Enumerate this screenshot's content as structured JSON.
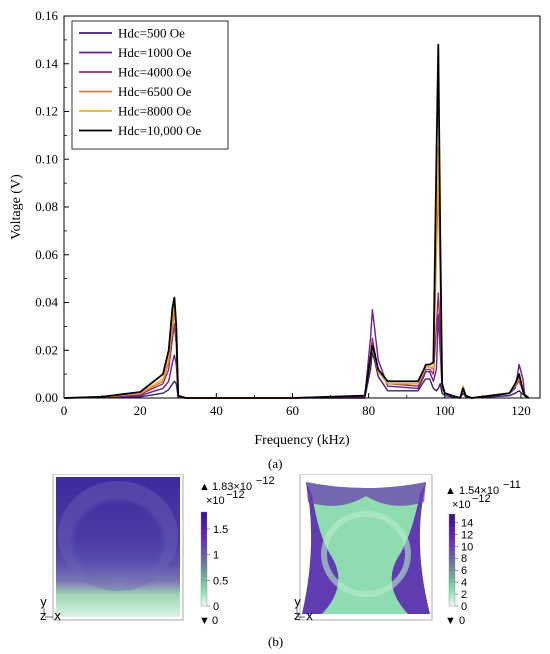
{
  "chart_data": {
    "type": "line",
    "xlabel": "Frequency (kHz)",
    "ylabel": "Voltage (V)",
    "xlim": [
      0,
      125
    ],
    "ylim": [
      0,
      0.16
    ],
    "xticks": [
      "0",
      "20",
      "40",
      "60",
      "80",
      "100",
      "120"
    ],
    "yticks": [
      "0.00",
      "0.02",
      "0.04",
      "0.06",
      "0.08",
      "0.10",
      "0.12",
      "0.14",
      "0.16"
    ],
    "legend_position": "top-left",
    "series": [
      {
        "name": "Hdc=500 Oe",
        "color": "#3b1f73",
        "x": [
          0,
          10,
          20,
          26,
          27.5,
          28.5,
          29,
          29.5,
          30,
          32,
          60,
          79,
          80.5,
          81,
          81.5,
          82.5,
          85,
          93,
          94.5,
          95,
          96,
          97,
          97.8,
          98.3,
          98.8,
          99.3,
          100,
          104,
          104.8,
          105.5,
          107,
          117,
          118.5,
          119.5,
          120.5,
          121,
          122
        ],
        "y": [
          0,
          0.0002,
          0.0005,
          0.002,
          0.0035,
          0.006,
          0.007,
          0.006,
          0.0002,
          0,
          0,
          0,
          0.012,
          0.019,
          0.016,
          0.009,
          0.003,
          0.003,
          0.007,
          0.008,
          0.008,
          0.004,
          0.003,
          0.004,
          0.006,
          0.002,
          0.001,
          0,
          0.002,
          0.0005,
          0,
          0.001,
          0.002,
          0.003,
          0.0015,
          0.0015,
          0.0002
        ]
      },
      {
        "name": "Hdc=1000 Oe",
        "color": "#6c1e8c",
        "x": [
          0,
          10,
          20,
          26,
          27.5,
          28.5,
          29,
          29.5,
          30,
          32,
          60,
          79,
          80.5,
          81,
          81.5,
          82.5,
          85,
          93,
          94.5,
          95,
          96,
          97,
          97.8,
          98.3,
          98.8,
          99.3,
          100,
          104,
          104.8,
          105.5,
          107,
          117,
          118.5,
          119.5,
          120.5,
          121,
          122
        ],
        "y": [
          0,
          0.0003,
          0.001,
          0.004,
          0.007,
          0.015,
          0.018,
          0.014,
          0.0005,
          0,
          0,
          0.0005,
          0.025,
          0.037,
          0.03,
          0.016,
          0.005,
          0.004,
          0.009,
          0.011,
          0.011,
          0.007,
          0.012,
          0.035,
          0.02,
          0.004,
          0.002,
          0,
          0.004,
          0.001,
          0,
          0.002,
          0.004,
          0.014,
          0.008,
          0.001,
          0
        ]
      },
      {
        "name": "Hdc=4000 Oe",
        "color": "#9b2a6a",
        "x": [
          0,
          10,
          20,
          26,
          27.5,
          28.5,
          29,
          29.5,
          30,
          32,
          60,
          79,
          80.5,
          81,
          81.5,
          82.5,
          85,
          93,
          94.5,
          95,
          96,
          97,
          97.8,
          98.3,
          98.8,
          99.3,
          100,
          104,
          104.8,
          105.5,
          107,
          117,
          118.5,
          119.5,
          120.5,
          121,
          122
        ],
        "y": [
          0,
          0.0004,
          0.0015,
          0.006,
          0.012,
          0.025,
          0.031,
          0.022,
          0.0008,
          0,
          0,
          0.0008,
          0.018,
          0.025,
          0.02,
          0.012,
          0.006,
          0.005,
          0.01,
          0.012,
          0.012,
          0.01,
          0.03,
          0.044,
          0.028,
          0.005,
          0.002,
          0,
          0.005,
          0.001,
          0,
          0.002,
          0.005,
          0.007,
          0.003,
          0.001,
          0
        ]
      },
      {
        "name": "Hdc=6500 Oe",
        "color": "#e07a3a",
        "x": [
          0,
          10,
          20,
          26,
          27.5,
          28.5,
          29,
          29.5,
          30,
          32,
          60,
          79,
          80.5,
          81,
          81.5,
          82.5,
          85,
          93,
          94.5,
          95,
          96,
          97,
          97.8,
          98.3,
          98.8,
          99.3,
          100,
          104,
          104.8,
          105.5,
          107,
          117,
          118.5,
          119.5,
          120.5,
          121,
          122
        ],
        "y": [
          0,
          0.0004,
          0.0018,
          0.007,
          0.015,
          0.03,
          0.036,
          0.026,
          0.001,
          0,
          0,
          0.001,
          0.016,
          0.022,
          0.018,
          0.011,
          0.006,
          0.006,
          0.011,
          0.013,
          0.013,
          0.012,
          0.06,
          0.09,
          0.05,
          0.005,
          0.002,
          0,
          0.005,
          0.001,
          0,
          0.002,
          0.005,
          0.008,
          0.003,
          0.001,
          0
        ]
      },
      {
        "name": "Hdc=8000 Oe",
        "color": "#f4b12a",
        "x": [
          0,
          10,
          20,
          26,
          27.5,
          28.5,
          29,
          29.5,
          30,
          32,
          60,
          79,
          80.5,
          81,
          81.5,
          82.5,
          85,
          93,
          94.5,
          95,
          96,
          97,
          97.8,
          98.3,
          98.8,
          99.3,
          100,
          104,
          104.8,
          105.5,
          107,
          117,
          118.5,
          119.5,
          120.5,
          121,
          122
        ],
        "y": [
          0,
          0.0004,
          0.002,
          0.008,
          0.018,
          0.034,
          0.039,
          0.028,
          0.001,
          0,
          0,
          0.001,
          0.016,
          0.021,
          0.018,
          0.011,
          0.006,
          0.006,
          0.011,
          0.013,
          0.013,
          0.013,
          0.075,
          0.105,
          0.06,
          0.006,
          0.002,
          0,
          0.005,
          0.001,
          0,
          0.002,
          0.006,
          0.009,
          0.003,
          0.001,
          0
        ]
      },
      {
        "name": "Hdc=10,000 Oe",
        "color": "#000000",
        "x": [
          0,
          10,
          20,
          26,
          27.5,
          28.5,
          29,
          29.5,
          30,
          32,
          60,
          79,
          80.5,
          81,
          81.5,
          82.5,
          85,
          93,
          94.5,
          95,
          96,
          97,
          97.8,
          98.3,
          98.8,
          99.3,
          100,
          104,
          104.8,
          105.5,
          107,
          117,
          118.5,
          119.5,
          120.5,
          121,
          122
        ],
        "y": [
          0,
          0.0005,
          0.0025,
          0.01,
          0.02,
          0.038,
          0.042,
          0.03,
          0.001,
          0,
          0,
          0.001,
          0.017,
          0.022,
          0.019,
          0.012,
          0.007,
          0.007,
          0.012,
          0.014,
          0.014,
          0.015,
          0.1,
          0.148,
          0.07,
          0.006,
          0.002,
          0,
          0.004,
          0.001,
          0,
          0.002,
          0.006,
          0.01,
          0.003,
          0.001,
          0
        ]
      }
    ]
  },
  "labels": {
    "a": "(a)",
    "b": "(b)"
  },
  "fields": {
    "left": {
      "max_label": "1.83×10",
      "max_exp": "−12",
      "scale_label": "×10",
      "scale_exp": "−12",
      "ticks": [
        "1.5",
        "1",
        "0.5",
        "0"
      ],
      "tick_values": [
        1.5,
        1.0,
        0.5,
        0
      ],
      "range": [
        0,
        1.83
      ],
      "min_label": "0"
    },
    "right": {
      "max_label": "1.54×10",
      "max_exp": "−11",
      "scale_label": "×10",
      "scale_exp": "−12",
      "ticks": [
        "14",
        "12",
        "10",
        "8",
        "6",
        "4",
        "2",
        "0"
      ],
      "tick_values": [
        14,
        12,
        10,
        8,
        6,
        4,
        2,
        0
      ],
      "range": [
        0,
        15.4
      ],
      "min_label": "0"
    },
    "axis_glyphs": {
      "y": "y",
      "z": "z",
      "x": "x"
    }
  }
}
